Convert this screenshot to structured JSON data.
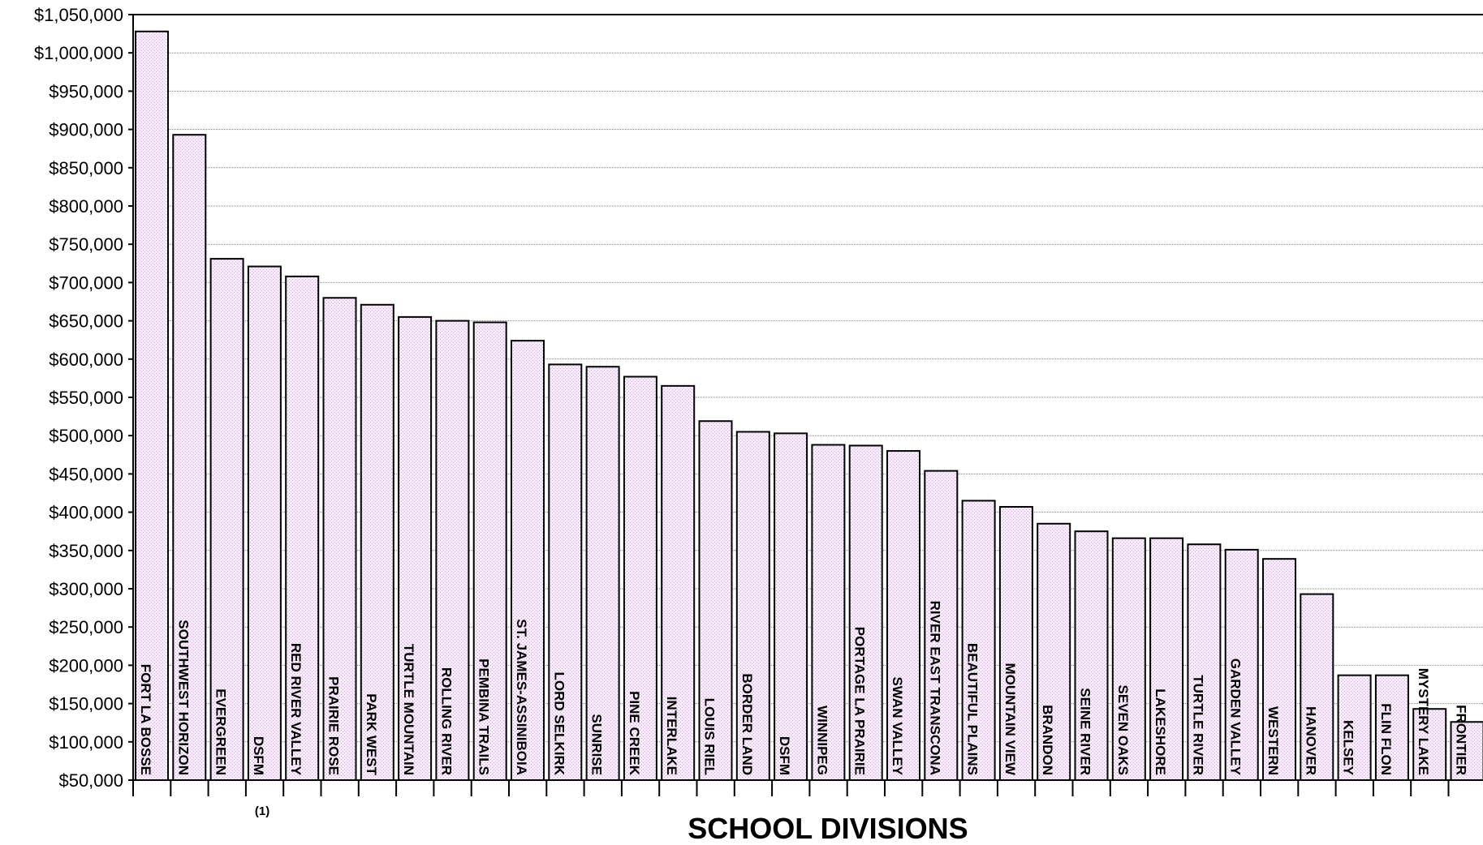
{
  "chart_data": {
    "type": "bar",
    "title": "",
    "xlabel": "SCHOOL DIVISIONS",
    "ylabel": "",
    "ylim": [
      50000,
      1050000
    ],
    "ytick_step": 50000,
    "ytick_labels": [
      "$50,000",
      "$100,000",
      "$150,000",
      "$200,000",
      "$250,000",
      "$300,000",
      "$350,000",
      "$400,000",
      "$450,000",
      "$500,000",
      "$550,000",
      "$600,000",
      "$650,000",
      "$700,000",
      "$750,000",
      "$800,000",
      "$850,000",
      "$900,000",
      "$950,000",
      "$1,000,000",
      "$1,050,000"
    ],
    "grid": true,
    "legend": "none",
    "bar_fill": "#f6eef8",
    "bar_stroke": "#000000",
    "grid_color": "#808080",
    "footnote_marker": "(1)",
    "footnote_category_index": 3,
    "categories": [
      "FORT LA BOSSE",
      "SOUTHWEST HORIZON",
      "EVERGREEN",
      "DSFM",
      "RED RIVER VALLEY",
      "PRAIRIE ROSE",
      "PARK WEST",
      "TURTLE MOUNTAIN",
      "ROLLING RIVER",
      "PEMBINA TRAILS",
      "ST. JAMES-ASSINIBOIA",
      "LORD SELKIRK",
      "SUNRISE",
      "PINE CREEK",
      "INTERLAKE",
      "LOUIS RIEL",
      "BORDER LAND",
      "DSFM",
      "WINNIPEG",
      "PORTAGE LA PRAIRIE",
      "SWAN VALLEY",
      "RIVER EAST TRANSCONA",
      "BEAUTIFUL PLAINS",
      "MOUNTAIN VIEW",
      "BRANDON",
      "SEINE RIVER",
      "SEVEN OAKS",
      "LAKESHORE",
      "TURTLE RIVER",
      "GARDEN VALLEY",
      "WESTERN",
      "HANOVER",
      "KELSEY",
      "FLIN FLON",
      "MYSTERY LAKE",
      "FRONTIER"
    ],
    "values": [
      1028000,
      893000,
      731000,
      721000,
      708000,
      680000,
      671000,
      655000,
      650000,
      648000,
      624000,
      593000,
      590000,
      577000,
      565000,
      519000,
      505000,
      503000,
      488000,
      487000,
      480000,
      454000,
      415000,
      407000,
      385000,
      375000,
      366000,
      366000,
      358000,
      351000,
      339000,
      293000,
      187000,
      187000,
      143000,
      126000
    ]
  }
}
